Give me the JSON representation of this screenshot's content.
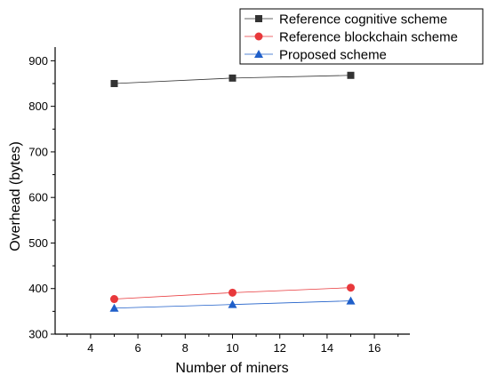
{
  "chart_data": {
    "type": "line",
    "title": "",
    "xlabel": "Number of miners",
    "ylabel": "Overhead (bytes)",
    "xlim": [
      2.5,
      17.5
    ],
    "ylim": [
      300,
      930
    ],
    "xticks": [
      4,
      6,
      8,
      10,
      12,
      14,
      16
    ],
    "yticks": [
      300,
      400,
      500,
      600,
      700,
      800,
      900
    ],
    "grid": false,
    "legend_position": "top-right",
    "x": [
      5,
      10,
      15
    ],
    "series": [
      {
        "name": "Reference cognitive scheme",
        "values": [
          850,
          862,
          868
        ],
        "color": "#333333",
        "marker": "square"
      },
      {
        "name": "Reference blockchain scheme",
        "values": [
          377,
          391,
          402
        ],
        "color": "#e8383b",
        "marker": "circle"
      },
      {
        "name": "Proposed scheme",
        "values": [
          357,
          365,
          373
        ],
        "color": "#1f5fc9",
        "marker": "triangle"
      }
    ]
  }
}
